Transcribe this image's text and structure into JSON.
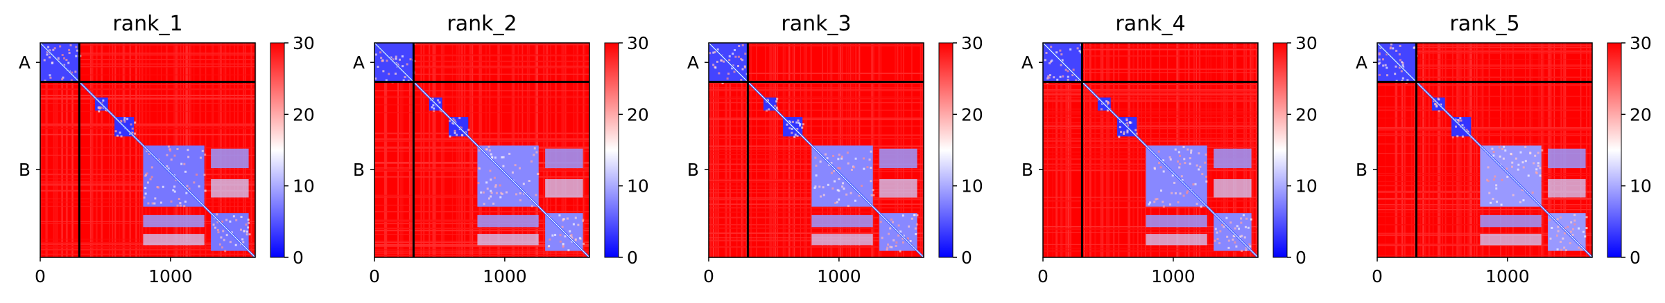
{
  "chart_data": [
    {
      "type": "heatmap",
      "title": "rank_1",
      "chains": [
        "A",
        "B"
      ],
      "chain_boundary": 300,
      "total_residues": 1650,
      "xticks": [
        0,
        1000
      ],
      "xtick_labels": [
        "0",
        "1000"
      ],
      "colorbar": {
        "min": 0,
        "max": 30,
        "ticks": [
          0,
          10,
          20,
          30
        ],
        "tick_labels": [
          "0",
          "10",
          "20",
          "30"
        ],
        "colormap": "bwr"
      },
      "blocks": [
        {
          "start": 0,
          "end": 300,
          "value": 4
        },
        {
          "start": 420,
          "end": 520,
          "value": 3
        },
        {
          "start": 570,
          "end": 720,
          "value": 3
        },
        {
          "start": 790,
          "end": 1260,
          "value": 7
        },
        {
          "start": 1310,
          "end": 1600,
          "value": 7
        }
      ]
    },
    {
      "type": "heatmap",
      "title": "rank_2",
      "chains": [
        "A",
        "B"
      ],
      "chain_boundary": 300,
      "total_residues": 1650,
      "xticks": [
        0,
        1000
      ],
      "xtick_labels": [
        "0",
        "1000"
      ],
      "colorbar": {
        "min": 0,
        "max": 30,
        "ticks": [
          0,
          10,
          20,
          30
        ],
        "tick_labels": [
          "0",
          "10",
          "20",
          "30"
        ],
        "colormap": "bwr"
      },
      "blocks": [
        {
          "start": 0,
          "end": 300,
          "value": 4
        },
        {
          "start": 420,
          "end": 520,
          "value": 3
        },
        {
          "start": 570,
          "end": 720,
          "value": 3
        },
        {
          "start": 790,
          "end": 1260,
          "value": 8
        },
        {
          "start": 1310,
          "end": 1600,
          "value": 8
        }
      ]
    },
    {
      "type": "heatmap",
      "title": "rank_3",
      "chains": [
        "A",
        "B"
      ],
      "chain_boundary": 300,
      "total_residues": 1650,
      "xticks": [
        0,
        1000
      ],
      "xtick_labels": [
        "0",
        "1000"
      ],
      "colorbar": {
        "min": 0,
        "max": 30,
        "ticks": [
          0,
          10,
          20,
          30
        ],
        "tick_labels": [
          "0",
          "10",
          "20",
          "30"
        ],
        "colormap": "bwr"
      },
      "blocks": [
        {
          "start": 0,
          "end": 300,
          "value": 4
        },
        {
          "start": 420,
          "end": 520,
          "value": 3
        },
        {
          "start": 570,
          "end": 720,
          "value": 3
        },
        {
          "start": 790,
          "end": 1260,
          "value": 8
        },
        {
          "start": 1310,
          "end": 1600,
          "value": 8
        }
      ]
    },
    {
      "type": "heatmap",
      "title": "rank_4",
      "chains": [
        "A",
        "B"
      ],
      "chain_boundary": 300,
      "total_residues": 1650,
      "xticks": [
        0,
        1000
      ],
      "xtick_labels": [
        "0",
        "1000"
      ],
      "colorbar": {
        "min": 0,
        "max": 30,
        "ticks": [
          0,
          10,
          20,
          30
        ],
        "tick_labels": [
          "0",
          "10",
          "20",
          "30"
        ],
        "colormap": "bwr"
      },
      "blocks": [
        {
          "start": 0,
          "end": 300,
          "value": 4
        },
        {
          "start": 420,
          "end": 520,
          "value": 3
        },
        {
          "start": 570,
          "end": 720,
          "value": 3
        },
        {
          "start": 790,
          "end": 1260,
          "value": 8
        },
        {
          "start": 1310,
          "end": 1600,
          "value": 8
        }
      ]
    },
    {
      "type": "heatmap",
      "title": "rank_5",
      "chains": [
        "A",
        "B"
      ],
      "chain_boundary": 300,
      "total_residues": 1650,
      "xticks": [
        0,
        1000
      ],
      "xtick_labels": [
        "0",
        "1000"
      ],
      "colorbar": {
        "min": 0,
        "max": 30,
        "ticks": [
          0,
          10,
          20,
          30
        ],
        "tick_labels": [
          "0",
          "10",
          "20",
          "30"
        ],
        "colormap": "bwr"
      },
      "blocks": [
        {
          "start": 0,
          "end": 300,
          "value": 4
        },
        {
          "start": 420,
          "end": 520,
          "value": 3
        },
        {
          "start": 570,
          "end": 720,
          "value": 3
        },
        {
          "start": 790,
          "end": 1260,
          "value": 9
        },
        {
          "start": 1310,
          "end": 1600,
          "value": 9
        }
      ]
    }
  ]
}
